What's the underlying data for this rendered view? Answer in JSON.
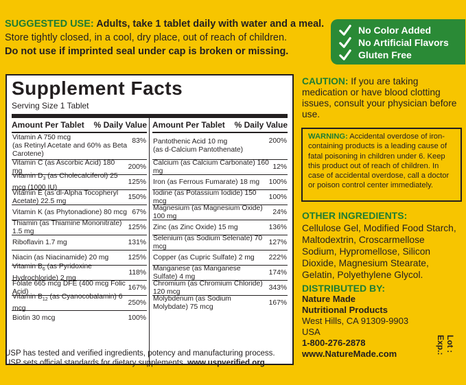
{
  "top": {
    "suggested_label": "SUGGESTED USE:",
    "suggested_text": " Adults, take 1 tablet daily with water and a meal.",
    "store_text": "Store tightly closed, in a cool, dry place, out of reach of children.",
    "seal_text": "Do not use if imprinted seal under cap is broken or missing."
  },
  "badges": [
    "No Color Added",
    "No Artificial Flavors",
    "Gluten Free"
  ],
  "facts": {
    "title": "Supplement Facts",
    "serving": "Serving Size 1 Tablet",
    "head_amount": "Amount Per Tablet",
    "head_dv": "% Daily Value",
    "left_rows": [
      {
        "name": "Vitamin A 750 mcg",
        "sub": "(as Retinyl Acetate and 60% as Beta Carotene)",
        "dv": "83%"
      },
      {
        "name": "Vitamin C (as Ascorbic Acid) 180 mg",
        "dv": "200%"
      },
      {
        "pre": "Vitamin D",
        "subscript": "3",
        "post": " (as Cholecalciferol) 25 mcg (1000 IU)",
        "dv": "125%"
      },
      {
        "name": "Vitamin E (as dl-Alpha Tocopheryl Acetate) 22.5 mg",
        "dv": "150%"
      },
      {
        "name": "Vitamin K (as Phytonadione) 80 mcg",
        "dv": "67%"
      },
      {
        "name": "Thiamin (as Thiamine Mononitrate) 1.5 mg",
        "dv": "125%"
      },
      {
        "name": "Riboflavin 1.7 mg",
        "dv": "131%"
      },
      {
        "name": "Niacin (as Niacinamide) 20 mg",
        "dv": "125%"
      },
      {
        "pre": "Vitamin B",
        "subscript": "6",
        "post": " (as Pyridoxine Hydrochloride) 2 mg",
        "dv": "118%"
      },
      {
        "name": "Folate 665 mcg DFE (400 mcg Folic Acid)",
        "dv": "167%"
      },
      {
        "pre": "Vitamin B",
        "subscript": "12",
        "post": " (as Cyanocobalamin) 6 mcg",
        "dv": "250%"
      },
      {
        "name": "Biotin 30 mcg",
        "dv": "100%"
      }
    ],
    "right_rows": [
      {
        "name": "Pantothenic Acid 10 mg",
        "sub": "(as d-Calcium Pantothenate)",
        "dv": "200%"
      },
      {
        "name": "Calcium (as Calcium Carbonate) 160 mg",
        "dv": "12%"
      },
      {
        "name": "Iron (as Ferrous Fumarate) 18 mg",
        "dv": "100%"
      },
      {
        "name": "Iodine (as Potassium Iodide) 150 mcg",
        "dv": "100%"
      },
      {
        "name": "Magnesium (as Magnesium Oxide) 100 mg",
        "dv": "24%"
      },
      {
        "name": "Zinc (as Zinc Oxide) 15 mg",
        "dv": "136%"
      },
      {
        "name": "Selenium (as Sodium Selenate) 70 mcg",
        "dv": "127%"
      },
      {
        "name": "Copper (as Cupric Sulfate) 2 mg",
        "dv": "222%"
      },
      {
        "name": "Manganese (as Manganese Sulfate) 4 mg",
        "dv": "174%"
      },
      {
        "name": "Chromium (as Chromium Chloride) 120 mcg",
        "dv": "343%"
      },
      {
        "name": "Molybdenum (as Sodium Molybdate) 75 mcg",
        "dv": "167%"
      }
    ]
  },
  "usp": {
    "line1": "USP has tested and verified ingredients, potency and manufacturing process.",
    "line2_prefix": "USP sets official standards for dietary supplements. ",
    "line2_url": "www.uspverified.org"
  },
  "caution": {
    "label": "CAUTION:",
    "text": " If you are taking medication or have blood clotting issues, consult your physician before use."
  },
  "warning": {
    "label": "WARNING:",
    "text": " Accidental overdose of iron-containing products is a leading cause of fatal poisoning in children under 6. Keep this product out of reach of children. In case of accidental overdose, call a doctor or poison control center immediately."
  },
  "other_ingredients": {
    "heading": "OTHER INGREDIENTS:",
    "text": "Cellulose Gel, Modified Food Starch, Maltodextrin, Croscarmellose Sodium, Hypromellose, Silicon Dioxide, Magnesium Stearate, Gelatin, Polyethylene Glycol."
  },
  "distributed": {
    "heading": "DISTRIBUTED BY:",
    "company_line1": "Nature Made",
    "company_line2": "Nutritional Products",
    "address": "West Hills, CA 91309-9903",
    "country": "USA",
    "phone": "1-800-276-2878",
    "website": "www.NatureMade.com"
  },
  "lot_label": "Lot :",
  "exp_label": "Exp.:",
  "colors": {
    "background": "#f7c500",
    "green": "#1f7d33",
    "badge": "#2a8a36",
    "text": "#231f20"
  },
  "icons": [
    "check-icon"
  ]
}
